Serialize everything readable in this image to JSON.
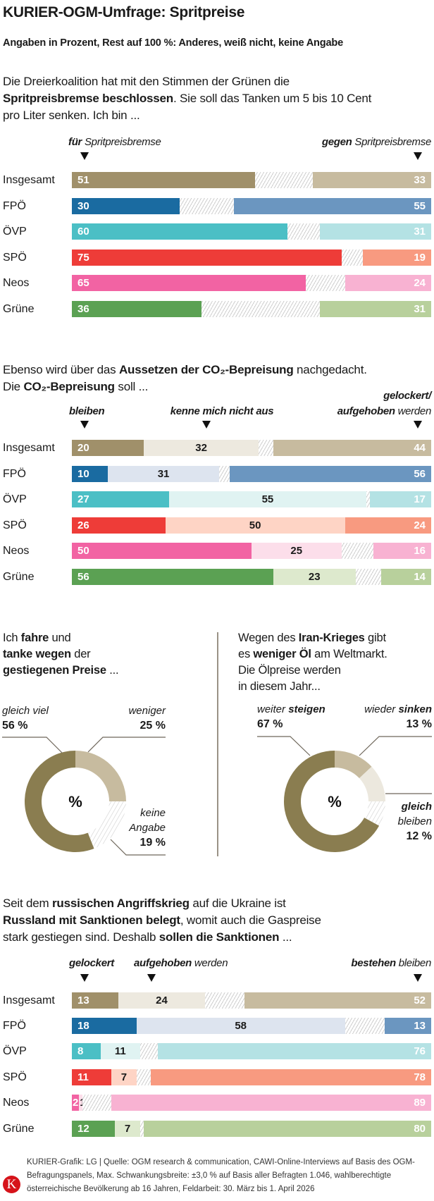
{
  "title": "KURIER-OGM-Umfrage: Spritpreise",
  "subtitle": "Angaben in Prozent, Rest auf 100 %: Anderes, weiß nicht, keine Angabe",
  "parties": [
    "Insgesamt",
    "FPÖ",
    "ÖVP",
    "SPÖ",
    "Neos",
    "Grüne"
  ],
  "colors": {
    "Insgesamt": {
      "dark": "#a0906a",
      "light": "#c7bb9f",
      "mid": "#ede9df"
    },
    "FPÖ": {
      "dark": "#1a6ba1",
      "light": "#6b96c0",
      "mid": "#dde4ef"
    },
    "ÖVP": {
      "dark": "#4bbfc5",
      "light": "#b4e2e4",
      "mid": "#e0f3f2"
    },
    "SPÖ": {
      "dark": "#ee3c38",
      "light": "#f89a80",
      "mid": "#fed4c5"
    },
    "Neos": {
      "dark": "#f263a3",
      "light": "#f8b2d2",
      "mid": "#fcdeea"
    },
    "Grüne": {
      "dark": "#5ba153",
      "light": "#b8d09c",
      "mid": "#dde9cd"
    },
    "donut_dark": "#8a7d50",
    "donut_light": "#c7bb9f",
    "donut_pale": "#ece8de",
    "logo": "#d6131a"
  },
  "questions": {
    "q1": [
      [
        {
          "t": "Die Dreierkoalition hat mit den Stimmen der Grünen die",
          "b": false
        }
      ],
      [
        {
          "t": "Spritpreisbremse beschlossen",
          "b": true
        },
        {
          "t": ". Sie soll das Tanken um 5 bis 10 Cent",
          "b": false
        }
      ],
      [
        {
          "t": "pro Liter senken. Ich bin ...",
          "b": false
        }
      ]
    ],
    "q2": [
      [
        {
          "t": "Ebenso wird über das ",
          "b": false
        },
        {
          "t": "Aussetzen der CO₂-Bepreisung",
          "b": true
        },
        {
          "t": " nachgedacht.",
          "b": false
        }
      ],
      [
        {
          "t": "Die ",
          "b": false
        },
        {
          "t": "CO₂-Bepreisung",
          "b": true
        },
        {
          "t": " soll ...",
          "b": false
        }
      ]
    ],
    "q3": [
      [
        {
          "t": "Ich ",
          "b": false
        },
        {
          "t": "fahre",
          "b": true
        },
        {
          "t": " und",
          "b": false
        }
      ],
      [
        {
          "t": "tanke wegen",
          "b": true
        },
        {
          "t": " der",
          "b": false
        }
      ],
      [
        {
          "t": "gestiegenen Preise",
          "b": true
        },
        {
          "t": " ...",
          "b": false
        }
      ]
    ],
    "q4": [
      [
        {
          "t": "Wegen des ",
          "b": false
        },
        {
          "t": "Iran-Krieges",
          "b": true
        },
        {
          "t": " gibt",
          "b": false
        }
      ],
      [
        {
          "t": "es ",
          "b": false
        },
        {
          "t": "weniger Öl",
          "b": true
        },
        {
          "t": " am Weltmarkt.",
          "b": false
        }
      ],
      [
        {
          "t": "Die Ölpreise werden",
          "b": false
        }
      ],
      [
        {
          "t": "in diesem Jahr...",
          "b": false
        }
      ]
    ],
    "q5": [
      [
        {
          "t": "Seit dem ",
          "b": false
        },
        {
          "t": "russischen Angriffskrieg",
          "b": true
        },
        {
          "t": " auf die Ukraine ist",
          "b": false
        }
      ],
      [
        {
          "t": "Russland mit Sanktionen belegt",
          "b": true
        },
        {
          "t": ", womit auch die Gaspreise",
          "b": false
        }
      ],
      [
        {
          "t": "stark gestiegen sind. Deshalb ",
          "b": false
        },
        {
          "t": "sollen die Sanktionen",
          "b": true
        },
        {
          "t": " ...",
          "b": false
        }
      ]
    ]
  },
  "chart_data": [
    {
      "type": "bar",
      "stacked": true,
      "orientation": "horizontal",
      "unit": "%",
      "categories": [
        "Insgesamt",
        "FPÖ",
        "ÖVP",
        "SPÖ",
        "Neos",
        "Grüne"
      ],
      "headers": [
        [
          {
            "t": "für",
            "b": true
          },
          {
            "t": " Spritpreisbremse",
            "b": false
          }
        ],
        [
          {
            "t": "gegen",
            "b": true
          },
          {
            "t": " Spritpreisbremse",
            "b": false
          }
        ]
      ],
      "series": [
        {
          "name": "für Spritpreisbremse",
          "values": [
            51,
            30,
            60,
            75,
            65,
            36
          ]
        },
        {
          "name": "gegen Spritpreisbremse",
          "values": [
            33,
            55,
            31,
            19,
            24,
            31
          ]
        }
      ],
      "xlim": [
        0,
        100
      ]
    },
    {
      "type": "bar",
      "stacked": true,
      "orientation": "horizontal",
      "unit": "%",
      "categories": [
        "Insgesamt",
        "FPÖ",
        "ÖVP",
        "SPÖ",
        "Neos",
        "Grüne"
      ],
      "headers": [
        [
          {
            "t": "bleiben",
            "b": true
          }
        ],
        [
          {
            "t": "kenne mich nicht aus",
            "b": true
          }
        ],
        [
          {
            "t": "gelockert/",
            "b": true
          }
        ],
        [
          {
            "t": "aufgehoben",
            "b": true
          },
          {
            "t": " werden",
            "b": false
          }
        ]
      ],
      "series": [
        {
          "name": "bleiben",
          "values": [
            20,
            10,
            27,
            26,
            50,
            56
          ]
        },
        {
          "name": "kenne mich nicht aus",
          "values": [
            32,
            31,
            55,
            50,
            25,
            23
          ]
        },
        {
          "name": "gelockert/aufgehoben werden",
          "values": [
            44,
            56,
            17,
            24,
            16,
            14
          ]
        }
      ],
      "xlim": [
        0,
        100
      ]
    },
    {
      "type": "pie",
      "donut": true,
      "center_label": "%",
      "slices": [
        {
          "label": [
            "weniger"
          ],
          "value": 25,
          "pct": "25 %",
          "color": "light"
        },
        {
          "label": [
            "keine",
            "Angabe"
          ],
          "value": 19,
          "pct": "19 %",
          "color": "hatch"
        },
        {
          "label": [
            "gleich viel"
          ],
          "value": 56,
          "pct": "56 %",
          "color": "dark"
        }
      ]
    },
    {
      "type": "pie",
      "donut": true,
      "center_label": "%",
      "slices": [
        {
          "label": [
            [
              {
                "t": "wieder ",
                "b": false
              },
              {
                "t": "sinken",
                "b": true
              }
            ]
          ],
          "value": 13,
          "pct": "13 %",
          "color": "light"
        },
        {
          "label": [
            [
              {
                "t": "gleich",
                "b": true
              }
            ],
            [
              {
                "t": "bleiben",
                "b": false
              }
            ]
          ],
          "value": 12,
          "pct": "12 %",
          "color": "pale"
        },
        {
          "label": [],
          "value": 8,
          "pct": "",
          "color": "hatch"
        },
        {
          "label": [
            [
              {
                "t": "weiter ",
                "b": false
              },
              {
                "t": "steigen",
                "b": true
              }
            ]
          ],
          "value": 67,
          "pct": "67 %",
          "color": "dark"
        }
      ]
    },
    {
      "type": "bar",
      "stacked": true,
      "orientation": "horizontal",
      "unit": "%",
      "categories": [
        "Insgesamt",
        "FPÖ",
        "ÖVP",
        "SPÖ",
        "Neos",
        "Grüne"
      ],
      "headers": [
        [
          {
            "t": "gelockert",
            "b": true
          }
        ],
        [
          {
            "t": "aufgehoben",
            "b": true
          },
          {
            "t": " werden",
            "b": false
          }
        ],
        [
          {
            "t": "bestehen",
            "b": true
          },
          {
            "t": " bleiben",
            "b": false
          }
        ]
      ],
      "series": [
        {
          "name": "gelockert",
          "values": [
            13,
            18,
            8,
            11,
            2,
            12
          ]
        },
        {
          "name": "aufgehoben werden",
          "values": [
            24,
            58,
            11,
            7,
            1,
            7
          ]
        },
        {
          "name": "bestehen bleiben",
          "values": [
            52,
            13,
            76,
            78,
            89,
            80
          ]
        }
      ],
      "xlim": [
        0,
        100
      ]
    }
  ],
  "footer": {
    "logo_letter": "K",
    "text": "KURIER-Grafik: LG | Quelle: OGM research & communication, CAWI-Online-Interviews auf Basis des OGM-Befragungspanels, Max. Schwankungsbreite: ±3,0 % auf Basis aller Befragten 1.046, wahlberechtigte österreichische Bevölkerung ab 16 Jahren, Feldarbeit: 30. März bis 1. April 2026"
  }
}
